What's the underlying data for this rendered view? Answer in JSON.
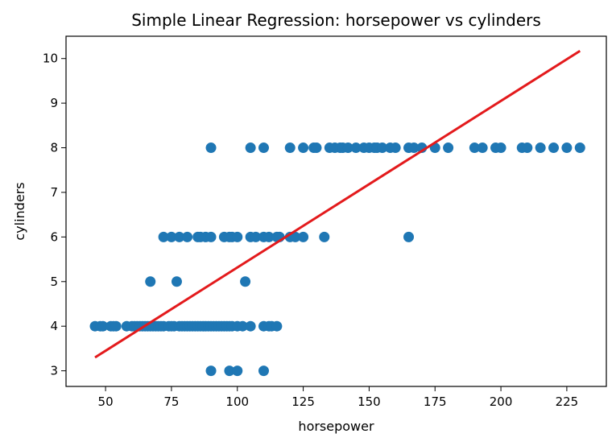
{
  "chart_data": {
    "type": "scatter",
    "title": "Simple Linear Regression: horsepower vs cylinders",
    "xlabel": "horsepower",
    "ylabel": "cylinders",
    "xlim": [
      35,
      240
    ],
    "ylim": [
      2.65,
      10.5
    ],
    "xticks": [
      50,
      75,
      100,
      125,
      150,
      175,
      200,
      225
    ],
    "yticks": [
      3,
      4,
      5,
      6,
      7,
      8,
      9,
      10
    ],
    "grid": false,
    "legend": "none",
    "colors": {
      "points": "#1f77b4",
      "regression": "#e31a1c"
    },
    "series": [
      {
        "kind": "scatter",
        "points": [
          [
            46,
            4
          ],
          [
            48,
            4
          ],
          [
            49,
            4
          ],
          [
            52,
            4
          ],
          [
            53,
            4
          ],
          [
            54,
            4
          ],
          [
            58,
            4
          ],
          [
            60,
            4
          ],
          [
            61,
            4
          ],
          [
            62,
            4
          ],
          [
            63,
            4
          ],
          [
            64,
            4
          ],
          [
            65,
            4
          ],
          [
            66,
            4
          ],
          [
            67,
            4
          ],
          [
            68,
            4
          ],
          [
            69,
            4
          ],
          [
            70,
            4
          ],
          [
            71,
            4
          ],
          [
            72,
            4
          ],
          [
            74,
            4
          ],
          [
            75,
            4
          ],
          [
            76,
            4
          ],
          [
            78,
            4
          ],
          [
            79,
            4
          ],
          [
            80,
            4
          ],
          [
            81,
            4
          ],
          [
            82,
            4
          ],
          [
            83,
            4
          ],
          [
            84,
            4
          ],
          [
            85,
            4
          ],
          [
            86,
            4
          ],
          [
            87,
            4
          ],
          [
            88,
            4
          ],
          [
            89,
            4
          ],
          [
            90,
            4
          ],
          [
            91,
            4
          ],
          [
            92,
            4
          ],
          [
            93,
            4
          ],
          [
            94,
            4
          ],
          [
            95,
            4
          ],
          [
            96,
            4
          ],
          [
            97,
            4
          ],
          [
            98,
            4
          ],
          [
            100,
            4
          ],
          [
            102,
            4
          ],
          [
            105,
            4
          ],
          [
            110,
            4
          ],
          [
            112,
            4
          ],
          [
            113,
            4
          ],
          [
            115,
            4
          ],
          [
            90,
            3
          ],
          [
            97,
            3
          ],
          [
            100,
            3
          ],
          [
            110,
            3
          ],
          [
            67,
            5
          ],
          [
            77,
            5
          ],
          [
            103,
            5
          ],
          [
            72,
            6
          ],
          [
            75,
            6
          ],
          [
            78,
            6
          ],
          [
            81,
            6
          ],
          [
            85,
            6
          ],
          [
            86,
            6
          ],
          [
            88,
            6
          ],
          [
            90,
            6
          ],
          [
            95,
            6
          ],
          [
            97,
            6
          ],
          [
            98,
            6
          ],
          [
            100,
            6
          ],
          [
            105,
            6
          ],
          [
            107,
            6
          ],
          [
            110,
            6
          ],
          [
            112,
            6
          ],
          [
            115,
            6
          ],
          [
            116,
            6
          ],
          [
            120,
            6
          ],
          [
            122,
            6
          ],
          [
            125,
            6
          ],
          [
            133,
            6
          ],
          [
            165,
            6
          ],
          [
            90,
            8
          ],
          [
            105,
            8
          ],
          [
            110,
            8
          ],
          [
            120,
            8
          ],
          [
            125,
            8
          ],
          [
            129,
            8
          ],
          [
            130,
            8
          ],
          [
            135,
            8
          ],
          [
            137,
            8
          ],
          [
            139,
            8
          ],
          [
            140,
            8
          ],
          [
            142,
            8
          ],
          [
            145,
            8
          ],
          [
            148,
            8
          ],
          [
            150,
            8
          ],
          [
            152,
            8
          ],
          [
            153,
            8
          ],
          [
            155,
            8
          ],
          [
            158,
            8
          ],
          [
            160,
            8
          ],
          [
            165,
            8
          ],
          [
            167,
            8
          ],
          [
            170,
            8
          ],
          [
            175,
            8
          ],
          [
            180,
            8
          ],
          [
            190,
            8
          ],
          [
            193,
            8
          ],
          [
            198,
            8
          ],
          [
            200,
            8
          ],
          [
            208,
            8
          ],
          [
            210,
            8
          ],
          [
            215,
            8
          ],
          [
            220,
            8
          ],
          [
            225,
            8
          ],
          [
            230,
            8
          ]
        ]
      },
      {
        "kind": "line",
        "points": [
          [
            46,
            3.3
          ],
          [
            230,
            10.17
          ]
        ]
      }
    ]
  }
}
